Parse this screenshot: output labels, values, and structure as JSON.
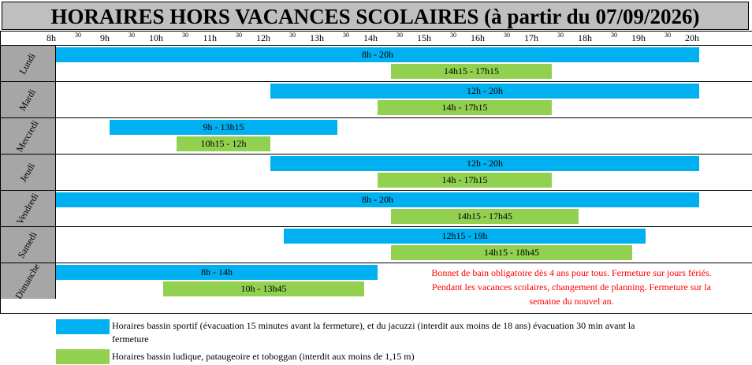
{
  "title": "HORAIRES HORS VACANCES SCOLAIRES (à partir du 07/09/2026)",
  "timeline": {
    "hours": [
      "8h",
      "9h",
      "10h",
      "11h",
      "12h",
      "13h",
      "14h",
      "15h",
      "16h",
      "17h",
      "18h",
      "19h",
      "20h"
    ],
    "half_mark": "30"
  },
  "days": [
    {
      "name": "Lundi",
      "blue": "8h - 20h",
      "green": "14h15 - 17h15"
    },
    {
      "name": "Mardi",
      "blue": "12h - 20h",
      "green": "14h - 17h15"
    },
    {
      "name": "Mercredi",
      "blue": "9h - 13h15",
      "green": "10h15 - 12h"
    },
    {
      "name": "Jeudi",
      "blue": "12h - 20h",
      "green": "14h - 17h15"
    },
    {
      "name": "Vendredi",
      "blue": "8h - 20h",
      "green": "14h15 - 17h45"
    },
    {
      "name": "Samedi",
      "blue": "12h15 - 19h",
      "green": "14h15 - 18h45"
    },
    {
      "name": "Dimanche",
      "blue": "8h - 14h",
      "green": "10h - 13h45"
    }
  ],
  "note": {
    "line1": "Bonnet de bain obligatoire dès 4 ans pour tous. Fermeture sur  jours fériés.",
    "line2": "Pendant les vacances scolaires, changement de planning. Fermeture sur la",
    "line3": "semaine du nouvel an."
  },
  "legend": {
    "blue_line1": "Horaires bassin sportif (évacuation 15 minutes avant la fermeture), et du jacuzzi (interdit aux moins de 18 ans) évacuation 30 min avant la",
    "blue_line2": "fermeture",
    "green": "Horaires bassin ludique, pataugeoire et toboggan (interdit aux moins de 1,15 m)"
  },
  "colors": {
    "blue": "#00b0f0",
    "green": "#92d050",
    "day_bg": "#a6a6a6",
    "note": "#ff0000"
  }
}
